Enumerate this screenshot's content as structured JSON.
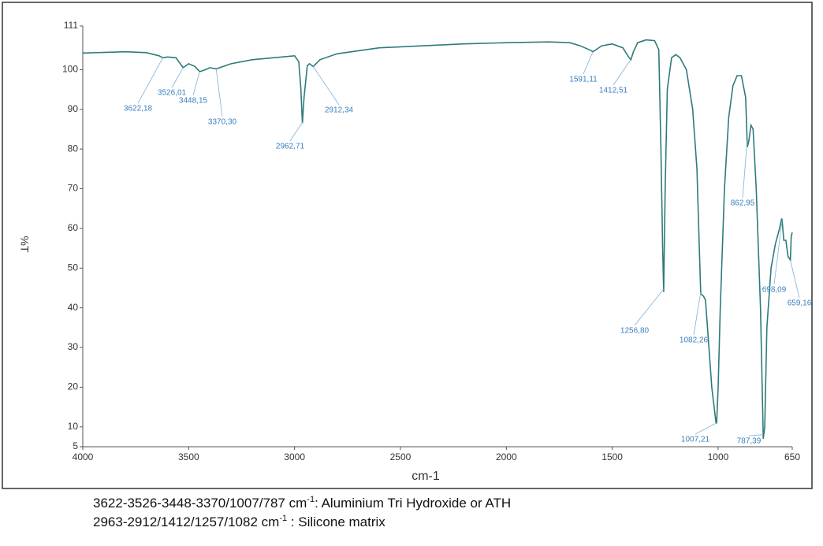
{
  "chart_data": {
    "type": "line",
    "xlabel": "cm-1",
    "ylabel": "%T",
    "xlim": [
      4000,
      650
    ],
    "ylim": [
      5,
      111
    ],
    "xticks": [
      4000,
      3500,
      3000,
      2500,
      2000,
      1500,
      1000,
      650
    ],
    "yticks": [
      5,
      10,
      20,
      30,
      40,
      50,
      60,
      70,
      80,
      90,
      100,
      111
    ],
    "grid": false,
    "series": [
      {
        "color": "#2e7b7b",
        "x": [
          4000,
          3800,
          3700,
          3640,
          3622,
          3600,
          3560,
          3526,
          3500,
          3470,
          3448,
          3420,
          3400,
          3370,
          3300,
          3200,
          3100,
          3000,
          2980,
          2970,
          2963,
          2955,
          2940,
          2930,
          2912,
          2880,
          2800,
          2600,
          2400,
          2200,
          2000,
          1800,
          1700,
          1650,
          1600,
          1591,
          1550,
          1500,
          1450,
          1420,
          1412,
          1400,
          1380,
          1340,
          1300,
          1280,
          1270,
          1262,
          1257,
          1250,
          1240,
          1220,
          1200,
          1180,
          1150,
          1120,
          1100,
          1090,
          1082,
          1070,
          1060,
          1050,
          1030,
          1010,
          1007,
          1000,
          990,
          970,
          950,
          930,
          910,
          890,
          870,
          862,
          855,
          845,
          835,
          820,
          800,
          790,
          787,
          780,
          770,
          750,
          730,
          710,
          700,
          698,
          690,
          680,
          670,
          659,
          655,
          650
        ],
        "values": [
          104.2,
          104.5,
          104.3,
          103.5,
          103,
          103.2,
          103,
          100.5,
          101.5,
          100.8,
          99.5,
          100,
          100.5,
          100.2,
          101.5,
          102.5,
          103,
          103.5,
          102,
          95,
          86.5,
          93,
          101,
          101.5,
          100.8,
          102.5,
          104,
          105.5,
          106,
          106.5,
          106.8,
          107,
          106.8,
          106,
          104.8,
          104.5,
          106,
          106.5,
          105.5,
          103,
          102.5,
          104.5,
          106.8,
          107.5,
          107.3,
          105,
          80,
          55,
          44,
          70,
          95,
          103,
          103.8,
          103,
          100,
          90,
          75,
          57,
          43.5,
          43,
          42,
          35,
          20,
          11,
          11,
          20,
          40,
          70,
          88,
          96,
          98.5,
          98.5,
          93,
          80.5,
          82,
          86,
          85,
          70,
          40,
          15,
          7,
          10,
          35,
          50,
          56,
          60,
          62.5,
          62,
          57,
          57,
          53,
          52,
          58,
          59
        ]
      }
    ],
    "annotations": [
      {
        "label": "3622,18",
        "value": 3622.18
      },
      {
        "label": "3526,01",
        "value": 3526.01
      },
      {
        "label": "3448,15",
        "value": 3448.15
      },
      {
        "label": "3370,30",
        "value": 3370.3
      },
      {
        "label": "2962,71",
        "value": 2962.71
      },
      {
        "label": "2912,34",
        "value": 2912.34
      },
      {
        "label": "1591,11",
        "value": 1591.11
      },
      {
        "label": "1412,51",
        "value": 1412.51
      },
      {
        "label": "1256,80",
        "value": 1256.8
      },
      {
        "label": "1082,26",
        "value": 1082.26
      },
      {
        "label": "862,95",
        "value": 862.95
      },
      {
        "label": "1007,21",
        "value": 1007.21
      },
      {
        "label": "787,39",
        "value": 787.39
      },
      {
        "label": "698,09",
        "value": 698.09
      },
      {
        "label": "659,16",
        "value": 659.16
      }
    ]
  },
  "caption": [
    {
      "text": "3622-3526-3448-3370/1007/787 cm",
      "sup": "-1",
      "rest": ": Aluminium Tri Hydroxide or ATH"
    },
    {
      "text": "2963-2912/1412/1257/1082 cm",
      "sup": "-1",
      "rest": " : Silicone matrix"
    }
  ]
}
